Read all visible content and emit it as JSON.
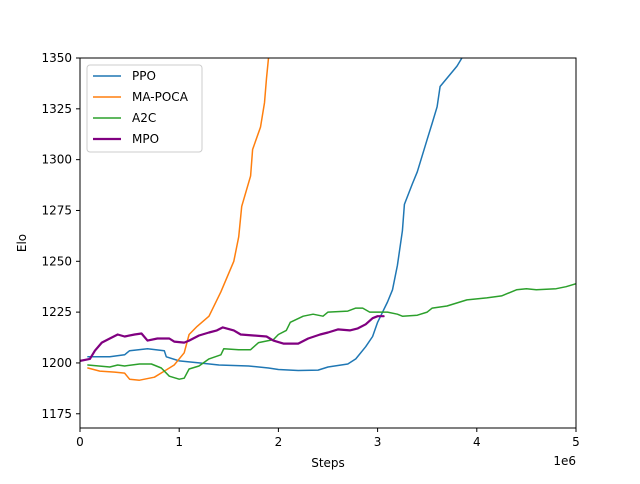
{
  "chart_data": {
    "type": "line",
    "title": "",
    "xlabel": "Steps",
    "ylabel": "Elo",
    "x_offset_label": "1e6",
    "xlim": [
      0,
      5
    ],
    "ylim": [
      1168,
      1350
    ],
    "x_ticks": [
      0,
      1,
      2,
      3,
      4,
      5
    ],
    "x_tick_labels": [
      "0",
      "1",
      "2",
      "3",
      "4",
      "5"
    ],
    "y_ticks": [
      1175,
      1200,
      1225,
      1250,
      1275,
      1300,
      1325,
      1350
    ],
    "y_tick_labels": [
      "1175",
      "1200",
      "1225",
      "1250",
      "1275",
      "1300",
      "1325",
      "1350"
    ],
    "grid": false,
    "legend_position": "top-left",
    "series": [
      {
        "name": "PPO",
        "color": "#1f77b4",
        "points": [
          [
            0.08,
            1203
          ],
          [
            0.3,
            1203
          ],
          [
            0.45,
            1204
          ],
          [
            0.5,
            1206
          ],
          [
            0.68,
            1207
          ],
          [
            0.85,
            1206
          ],
          [
            0.87,
            1203
          ],
          [
            1.0,
            1201
          ],
          [
            1.2,
            1200
          ],
          [
            1.4,
            1199
          ],
          [
            1.7,
            1198.5
          ],
          [
            1.9,
            1197.5
          ],
          [
            2.0,
            1196.8
          ],
          [
            2.2,
            1196.3
          ],
          [
            2.4,
            1196.5
          ],
          [
            2.5,
            1198
          ],
          [
            2.7,
            1199.5
          ],
          [
            2.78,
            1202
          ],
          [
            2.88,
            1208
          ],
          [
            2.95,
            1213
          ],
          [
            3.0,
            1220
          ],
          [
            3.1,
            1230
          ],
          [
            3.15,
            1236
          ],
          [
            3.2,
            1248
          ],
          [
            3.25,
            1265
          ],
          [
            3.27,
            1278
          ],
          [
            3.35,
            1288
          ],
          [
            3.4,
            1294
          ],
          [
            3.5,
            1310
          ],
          [
            3.55,
            1318
          ],
          [
            3.6,
            1326
          ],
          [
            3.63,
            1336
          ],
          [
            3.8,
            1346
          ],
          [
            3.85,
            1350
          ]
        ]
      },
      {
        "name": "MA-POCA",
        "color": "#ff7f0e",
        "points": [
          [
            0.08,
            1197.5
          ],
          [
            0.2,
            1196
          ],
          [
            0.35,
            1195.5
          ],
          [
            0.45,
            1195
          ],
          [
            0.5,
            1192
          ],
          [
            0.6,
            1191.5
          ],
          [
            0.75,
            1193
          ],
          [
            0.85,
            1196
          ],
          [
            0.95,
            1199
          ],
          [
            1.05,
            1205
          ],
          [
            1.1,
            1214
          ],
          [
            1.18,
            1218
          ],
          [
            1.3,
            1223
          ],
          [
            1.42,
            1235
          ],
          [
            1.55,
            1250
          ],
          [
            1.6,
            1262
          ],
          [
            1.63,
            1277
          ],
          [
            1.72,
            1292
          ],
          [
            1.74,
            1305
          ],
          [
            1.82,
            1316
          ],
          [
            1.86,
            1328
          ],
          [
            1.88,
            1340
          ],
          [
            1.9,
            1350
          ]
        ]
      },
      {
        "name": "A2C",
        "color": "#2ca02c",
        "points": [
          [
            0.08,
            1199
          ],
          [
            0.3,
            1198
          ],
          [
            0.38,
            1199
          ],
          [
            0.45,
            1198.5
          ],
          [
            0.6,
            1199.5
          ],
          [
            0.72,
            1199.5
          ],
          [
            0.82,
            1197.5
          ],
          [
            0.9,
            1193.5
          ],
          [
            1.0,
            1192
          ],
          [
            1.05,
            1192.5
          ],
          [
            1.1,
            1197
          ],
          [
            1.2,
            1198.5
          ],
          [
            1.3,
            1202
          ],
          [
            1.42,
            1204
          ],
          [
            1.45,
            1207
          ],
          [
            1.6,
            1206.5
          ],
          [
            1.72,
            1206.5
          ],
          [
            1.8,
            1210
          ],
          [
            1.95,
            1211.5
          ],
          [
            2.0,
            1214
          ],
          [
            2.08,
            1216
          ],
          [
            2.12,
            1220
          ],
          [
            2.25,
            1223
          ],
          [
            2.35,
            1224
          ],
          [
            2.45,
            1223
          ],
          [
            2.5,
            1225
          ],
          [
            2.7,
            1225.5
          ],
          [
            2.78,
            1227
          ],
          [
            2.85,
            1227
          ],
          [
            2.92,
            1225
          ],
          [
            3.1,
            1225
          ],
          [
            3.2,
            1224
          ],
          [
            3.25,
            1223
          ],
          [
            3.4,
            1223.5
          ],
          [
            3.5,
            1225
          ],
          [
            3.55,
            1227
          ],
          [
            3.7,
            1228
          ],
          [
            3.9,
            1231
          ],
          [
            4.1,
            1232
          ],
          [
            4.25,
            1233
          ],
          [
            4.4,
            1236
          ],
          [
            4.5,
            1236.5
          ],
          [
            4.6,
            1236
          ],
          [
            4.8,
            1236.5
          ],
          [
            4.9,
            1237.5
          ],
          [
            5.0,
            1239
          ]
        ]
      },
      {
        "name": "MPO",
        "color": "#800080",
        "points": [
          [
            0.0,
            1201
          ],
          [
            0.1,
            1202
          ],
          [
            0.15,
            1206
          ],
          [
            0.22,
            1210
          ],
          [
            0.3,
            1212
          ],
          [
            0.38,
            1214
          ],
          [
            0.45,
            1213
          ],
          [
            0.55,
            1214
          ],
          [
            0.62,
            1214.5
          ],
          [
            0.68,
            1211
          ],
          [
            0.78,
            1212
          ],
          [
            0.9,
            1212
          ],
          [
            0.95,
            1210.5
          ],
          [
            1.05,
            1210
          ],
          [
            1.1,
            1211
          ],
          [
            1.2,
            1213.5
          ],
          [
            1.3,
            1215
          ],
          [
            1.38,
            1216
          ],
          [
            1.44,
            1217.5
          ],
          [
            1.55,
            1216
          ],
          [
            1.62,
            1214
          ],
          [
            1.75,
            1213.5
          ],
          [
            1.88,
            1213
          ],
          [
            1.95,
            1211
          ],
          [
            2.05,
            1209.5
          ],
          [
            2.2,
            1209.5
          ],
          [
            2.3,
            1212
          ],
          [
            2.42,
            1214
          ],
          [
            2.5,
            1215
          ],
          [
            2.6,
            1216.5
          ],
          [
            2.72,
            1216
          ],
          [
            2.8,
            1217
          ],
          [
            2.88,
            1219
          ],
          [
            2.95,
            1222
          ],
          [
            3.0,
            1223
          ],
          [
            3.06,
            1223
          ]
        ]
      }
    ]
  }
}
